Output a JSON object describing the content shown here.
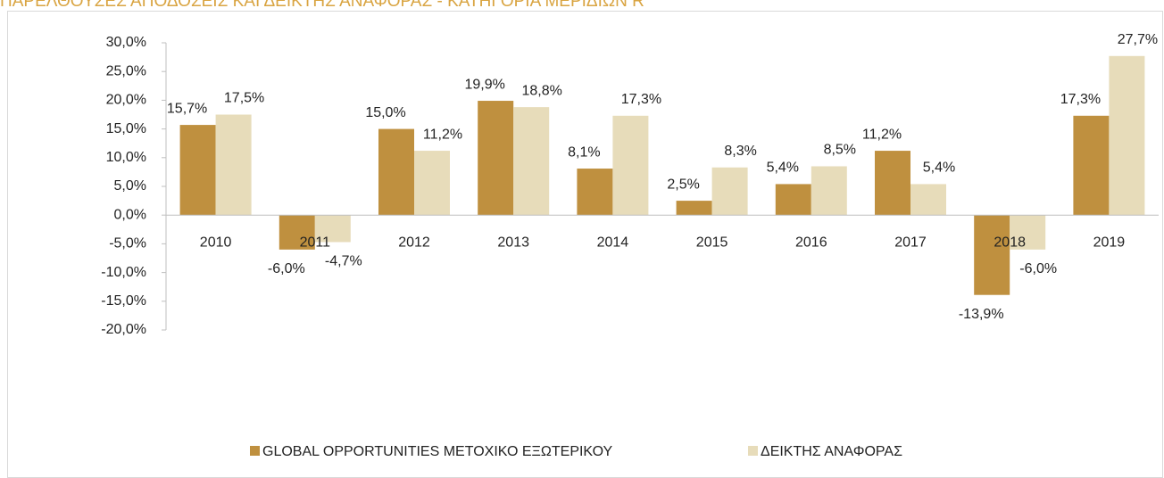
{
  "chart_data": {
    "type": "bar",
    "title": "ΠΑΡΕΛΘΟΥΣΕΣ ΑΠΟΔΟΣΕΙΣ ΚΑΙ ΔΕΙΚΤΗΣ ΑΝΑΦΟΡΑΣ - ΚΑΤΗΓΟΡΙΑ ΜΕΡΙΔΙΩΝ R",
    "categories": [
      "2010",
      "2011",
      "2012",
      "2013",
      "2014",
      "2015",
      "2016",
      "2017",
      "2018",
      "2019"
    ],
    "series": [
      {
        "name": "GLOBAL OPPORTUNITIES ΜΕΤΟΧΙΚΟ ΕΞΩΤΕΡΙΚΟΥ",
        "color": "#bf903f",
        "values": [
          15.7,
          -6.0,
          15.0,
          19.9,
          8.1,
          2.5,
          5.4,
          11.2,
          -13.9,
          17.3
        ],
        "value_labels": [
          "15,7%",
          "-6,0%",
          "15,0%",
          "19,9%",
          "8,1%",
          "2,5%",
          "5,4%",
          "11,2%",
          "-13,9%",
          "17,3%"
        ]
      },
      {
        "name": "ΔΕΙΚΤΗΣ ΑΝΑΦΟΡΑΣ",
        "color": "#e7dcba",
        "values": [
          17.5,
          -4.7,
          11.2,
          18.8,
          17.3,
          8.3,
          8.5,
          5.4,
          -6.0,
          27.7
        ],
        "value_labels": [
          "17,5%",
          "-4,7%",
          "11,2%",
          "18,8%",
          "17,3%",
          "8,3%",
          "8,5%",
          "5,4%",
          "-6,0%",
          "27,7%"
        ]
      }
    ],
    "ylim": [
      -20,
      30
    ],
    "yticks": [
      {
        "value": -20,
        "label": "-20,0%"
      },
      {
        "value": -15,
        "label": "-15,0%"
      },
      {
        "value": -10,
        "label": "-10,0%"
      },
      {
        "value": -5,
        "label": "-5,0%"
      },
      {
        "value": 0,
        "label": "0,0%"
      },
      {
        "value": 5,
        "label": "5,0%"
      },
      {
        "value": 10,
        "label": "10,0%"
      },
      {
        "value": 15,
        "label": "15,0%"
      },
      {
        "value": 20,
        "label": "20,0%"
      },
      {
        "value": 25,
        "label": "25,0%"
      },
      {
        "value": 30,
        "label": "30,0%"
      }
    ],
    "legend": "bottom"
  }
}
